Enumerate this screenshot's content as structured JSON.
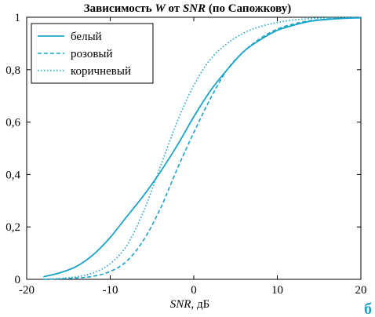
{
  "chart_data": {
    "type": "line",
    "title_parts": [
      {
        "text": "Зависимость ",
        "italic": false
      },
      {
        "text": "W",
        "italic": true
      },
      {
        "text": " от ",
        "italic": false
      },
      {
        "text": "SNR",
        "italic": true
      },
      {
        "text": " (по Сапожкову)",
        "italic": false
      }
    ],
    "xlabel_parts": [
      {
        "text": "SNR",
        "italic": true
      },
      {
        "text": ", дБ",
        "italic": false
      }
    ],
    "xlim": [
      -20,
      20
    ],
    "ylim": [
      0,
      1
    ],
    "x_ticks": [
      -20,
      -10,
      0,
      10,
      20
    ],
    "x_tick_labels": [
      "-20",
      "-10",
      "0",
      "10",
      "20"
    ],
    "y_ticks": [
      0,
      0.2,
      0.4,
      0.6,
      0.8,
      1
    ],
    "y_tick_labels": [
      "0",
      "0,2",
      "0,4",
      "0,6",
      "0,8",
      "1"
    ],
    "grid": false,
    "legend_position": "top-left",
    "line_color": "#1aa3c9",
    "corner_mark": "б",
    "series": [
      {
        "name": "белый",
        "style": "solid",
        "points": [
          [
            -18,
            0.01
          ],
          [
            -16,
            0.025
          ],
          [
            -14,
            0.05
          ],
          [
            -12,
            0.095
          ],
          [
            -10,
            0.16
          ],
          [
            -8,
            0.24
          ],
          [
            -6,
            0.32
          ],
          [
            -4,
            0.41
          ],
          [
            -2,
            0.51
          ],
          [
            0,
            0.62
          ],
          [
            2,
            0.72
          ],
          [
            4,
            0.8
          ],
          [
            6,
            0.87
          ],
          [
            8,
            0.915
          ],
          [
            10,
            0.95
          ],
          [
            12,
            0.97
          ],
          [
            14,
            0.985
          ],
          [
            16,
            0.992
          ],
          [
            18,
            0.996
          ],
          [
            20,
            0.998
          ]
        ]
      },
      {
        "name": "розовый",
        "style": "dashed",
        "points": [
          [
            -18,
            0.0
          ],
          [
            -16,
            0.002
          ],
          [
            -14,
            0.005
          ],
          [
            -12,
            0.012
          ],
          [
            -10,
            0.03
          ],
          [
            -8,
            0.07
          ],
          [
            -6,
            0.15
          ],
          [
            -4,
            0.27
          ],
          [
            -2,
            0.42
          ],
          [
            0,
            0.56
          ],
          [
            2,
            0.69
          ],
          [
            4,
            0.8
          ],
          [
            6,
            0.87
          ],
          [
            8,
            0.92
          ],
          [
            10,
            0.955
          ],
          [
            12,
            0.975
          ],
          [
            14,
            0.987
          ],
          [
            16,
            0.993
          ],
          [
            18,
            0.997
          ],
          [
            20,
            0.999
          ]
        ]
      },
      {
        "name": "коричневый",
        "style": "dotted",
        "points": [
          [
            -18,
            0.0
          ],
          [
            -16,
            0.003
          ],
          [
            -14,
            0.01
          ],
          [
            -12,
            0.025
          ],
          [
            -10,
            0.06
          ],
          [
            -8,
            0.13
          ],
          [
            -6,
            0.26
          ],
          [
            -4,
            0.43
          ],
          [
            -2,
            0.6
          ],
          [
            0,
            0.74
          ],
          [
            2,
            0.84
          ],
          [
            4,
            0.9
          ],
          [
            6,
            0.94
          ],
          [
            8,
            0.965
          ],
          [
            10,
            0.98
          ],
          [
            12,
            0.99
          ],
          [
            14,
            0.995
          ],
          [
            16,
            0.998
          ],
          [
            18,
            0.999
          ],
          [
            20,
            1.0
          ]
        ]
      }
    ]
  }
}
